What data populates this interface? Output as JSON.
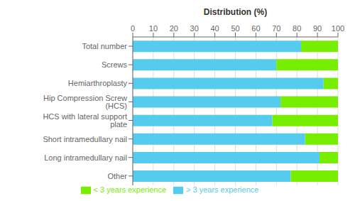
{
  "chart_data": {
    "type": "bar",
    "orientation": "horizontal",
    "stacked": true,
    "xlabel": "Distribution (%)",
    "categories": [
      "Total number",
      "Screws",
      "Hemiarthroplasty",
      "Hip Compression Screw (HCS)",
      "HCS with lateral support plate",
      "Short intramedullary nail",
      "Long intramedullary nail",
      "Other"
    ],
    "series": [
      {
        "name": "> 3 years experience",
        "color": "#55CCEE",
        "values": [
          82,
          70,
          93,
          72,
          68,
          84,
          91,
          77
        ]
      },
      {
        "name": "< 3 years experience",
        "color": "#77EE00",
        "values": [
          18,
          30,
          7,
          28,
          32,
          16,
          9,
          23
        ]
      }
    ],
    "xlim": [
      0,
      100
    ],
    "xticks": [
      0,
      10,
      20,
      30,
      40,
      50,
      60,
      70,
      80,
      90,
      100
    ],
    "grid": true,
    "legend": "bottom"
  }
}
